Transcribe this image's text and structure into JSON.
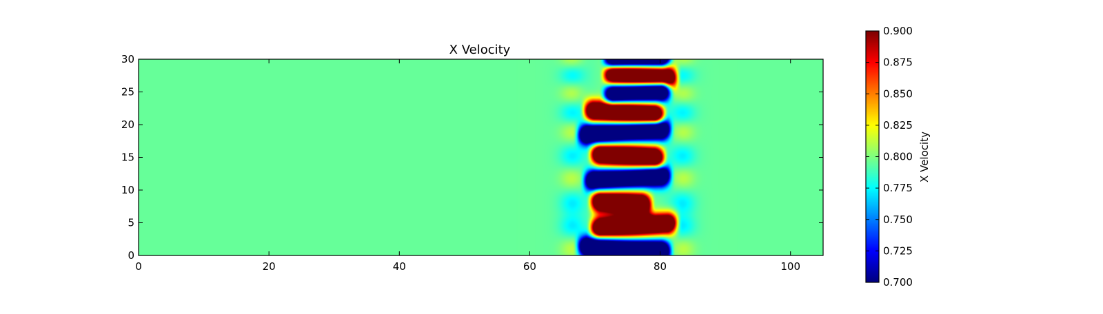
{
  "chart_data": {
    "type": "heatmap",
    "title": "X Velocity",
    "xlabel": "",
    "ylabel": "",
    "xlim": [
      0,
      105
    ],
    "ylim": [
      0,
      30
    ],
    "x_ticks": [
      0,
      20,
      40,
      60,
      80,
      100
    ],
    "y_ticks": [
      0,
      5,
      10,
      15,
      20,
      25,
      30
    ],
    "x_tick_labels": [
      "0",
      "20",
      "40",
      "60",
      "80",
      "100"
    ],
    "y_tick_labels": [
      "0",
      "5",
      "10",
      "15",
      "20",
      "25",
      "30"
    ],
    "grid": false,
    "colormap": "jet",
    "background_value": 0.795,
    "disturbance_x_range": [
      67,
      83
    ],
    "colorbar": {
      "label": "X Velocity",
      "range": [
        0.7,
        0.9
      ],
      "ticks": [
        0.7,
        0.725,
        0.75,
        0.775,
        0.8,
        0.825,
        0.85,
        0.875,
        0.9
      ],
      "tick_labels": [
        "0.700",
        "0.725",
        "0.750",
        "0.775",
        "0.800",
        "0.825",
        "0.850",
        "0.875",
        "0.900"
      ],
      "placement": "right"
    },
    "bands": [
      {
        "y": 1.0,
        "value": 0.7,
        "x_start": 68,
        "x_end": 81
      },
      {
        "y": 4.5,
        "value": 0.9,
        "x_start": 70,
        "x_end": 82
      },
      {
        "y": 8.0,
        "value": 0.9,
        "x_start": 70,
        "x_end": 78
      },
      {
        "y": 11.8,
        "value": 0.7,
        "x_start": 69,
        "x_end": 81
      },
      {
        "y": 15.2,
        "value": 0.9,
        "x_start": 70,
        "x_end": 80
      },
      {
        "y": 18.9,
        "value": 0.7,
        "x_start": 68,
        "x_end": 81
      },
      {
        "y": 21.8,
        "value": 0.9,
        "x_start": 69,
        "x_end": 80
      },
      {
        "y": 24.8,
        "value": 0.7,
        "x_start": 72,
        "x_end": 81
      },
      {
        "y": 27.6,
        "value": 0.9,
        "x_start": 72,
        "x_end": 82
      },
      {
        "y": 30.0,
        "value": 0.7,
        "x_start": 72,
        "x_end": 81
      }
    ]
  }
}
